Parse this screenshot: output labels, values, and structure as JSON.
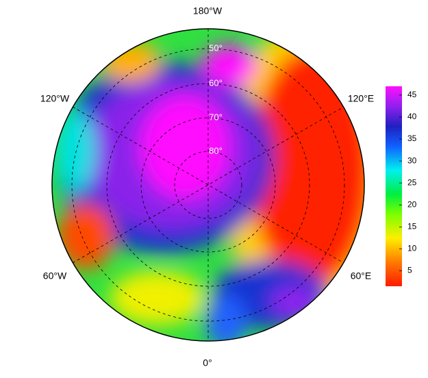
{
  "map": {
    "lon_labels": [
      "180°W",
      "120°W",
      "120°E",
      "60°W",
      "60°E",
      "0°"
    ],
    "lat_labels": [
      "50°",
      "60°",
      "70°",
      "80°"
    ]
  },
  "colorbar": {
    "lim": [
      1.5,
      47
    ],
    "ticks": [
      5,
      10,
      15,
      20,
      25,
      30,
      35,
      40,
      45
    ]
  }
}
